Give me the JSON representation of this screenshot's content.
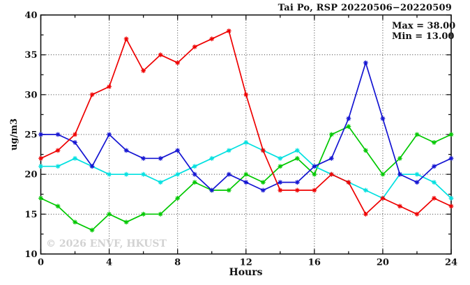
{
  "window": {
    "background": "#ffffff"
  },
  "chart_data": {
    "type": "line",
    "title": "Tai Po, RSP 20220506−20220509",
    "stats": {
      "max_label": "Max = 38.00",
      "min_label": "Min = 13.00"
    },
    "xlabel": "Hours",
    "ylabel": "ug/m3",
    "watermark": "© 2026 ENVF, HKUST",
    "xlim": [
      0,
      24
    ],
    "ylim": [
      10,
      40
    ],
    "x_major_ticks": [
      0,
      4,
      8,
      12,
      16,
      20,
      24
    ],
    "x_minor_ticks": [
      2,
      6,
      10,
      14,
      18,
      22
    ],
    "y_major_ticks": [
      10,
      15,
      20,
      25,
      30,
      35,
      40
    ],
    "y_minor_ticks": [
      12.5,
      17.5,
      22.5,
      27.5,
      32.5,
      37.5
    ],
    "grid": {
      "show": true,
      "style": "dotted",
      "on_major_only": true
    },
    "legend_position": "none",
    "marker": "asterisk",
    "x": [
      0,
      1,
      2,
      3,
      4,
      5,
      6,
      7,
      8,
      9,
      10,
      11,
      12,
      13,
      14,
      15,
      16,
      17,
      18,
      19,
      20,
      21,
      22,
      23,
      24
    ],
    "series": [
      {
        "name": "green-series",
        "color": "#00c800",
        "values": [
          17,
          16,
          14,
          13,
          15,
          14,
          15,
          15,
          17,
          19,
          18,
          18,
          20,
          19,
          21,
          22,
          20,
          25,
          26,
          23,
          20,
          22,
          25,
          24,
          25
        ]
      },
      {
        "name": "cyan-series",
        "color": "#00e0e0",
        "values": [
          21,
          21,
          22,
          21,
          20,
          20,
          20,
          19,
          20,
          21,
          22,
          23,
          24,
          23,
          22,
          23,
          21,
          20,
          19,
          18,
          17,
          20,
          20,
          19,
          17
        ]
      },
      {
        "name": "blue-series",
        "color": "#1414d2",
        "values": [
          25,
          25,
          24,
          21,
          25,
          23,
          22,
          22,
          23,
          20,
          18,
          20,
          19,
          18,
          19,
          19,
          21,
          22,
          27,
          34,
          27,
          20,
          19,
          21,
          22
        ]
      },
      {
        "name": "red-series",
        "color": "#ee0000",
        "values": [
          22,
          23,
          25,
          30,
          31,
          37,
          33,
          35,
          34,
          36,
          37,
          38,
          30,
          23,
          18,
          18,
          18,
          20,
          19,
          15,
          17,
          16,
          15,
          17,
          16
        ]
      }
    ]
  }
}
